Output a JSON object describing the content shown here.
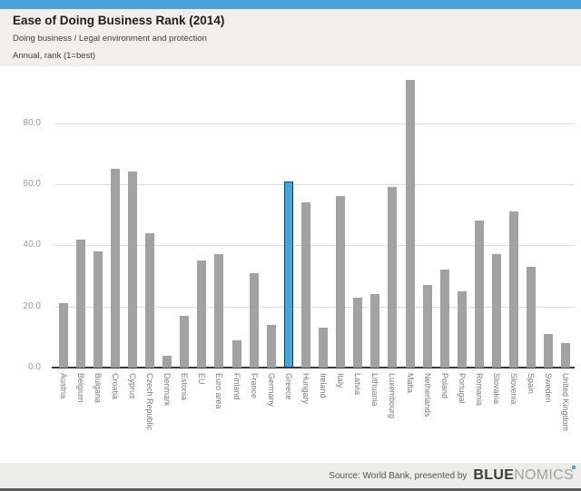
{
  "page": {
    "top_bar_color": "#47a4dc",
    "background_color": "#f0efed",
    "plot_background": "#ffffff",
    "bottom_line_color": "#5a5a5a"
  },
  "header": {
    "title": "Ease of Doing Business Rank (2014)",
    "subtitle": "Doing business / Legal environment and protection",
    "frequency_note": "Annual, rank (1=best)"
  },
  "chart_data": {
    "type": "bar",
    "title": "Ease of Doing Business Rank (2014)",
    "xlabel": "",
    "ylabel": "",
    "grid": true,
    "ylim": [
      0,
      95
    ],
    "yticks": [
      0,
      20,
      40,
      60,
      80
    ],
    "ytick_labels": [
      "0.0",
      "20.0",
      "40.0",
      "60.0",
      "80.0"
    ],
    "bar_color": "#a2a2a2",
    "highlight_category": "Greece",
    "highlight_color": "#3fa8e0",
    "highlight_border_color": "#1b3d52",
    "categories": [
      "Austria",
      "Belgium",
      "Bulgaria",
      "Croatia",
      "Cyprus",
      "Czech Republic",
      "Denmark",
      "Estonia",
      "EU",
      "Euro area",
      "Finland",
      "France",
      "Germany",
      "Greece",
      "Hungary",
      "Ireland",
      "Italy",
      "Latvia",
      "Lithuania",
      "Luxembourg",
      "Malta",
      "Netherlands",
      "Poland",
      "Portugal",
      "Romania",
      "Slovakia",
      "Slovenia",
      "Spain",
      "Sweden",
      "United Kingdom"
    ],
    "values": [
      21,
      42,
      38,
      65,
      64,
      44,
      4,
      17,
      35,
      37,
      9,
      31,
      14,
      61,
      54,
      13,
      56,
      23,
      24,
      59,
      94,
      27,
      32,
      25,
      48,
      37,
      51,
      33,
      11,
      8
    ]
  },
  "footer": {
    "source_text": "Source: World Bank, presented by",
    "brand_bold": "BLUE",
    "brand_light": "NOMICS"
  }
}
